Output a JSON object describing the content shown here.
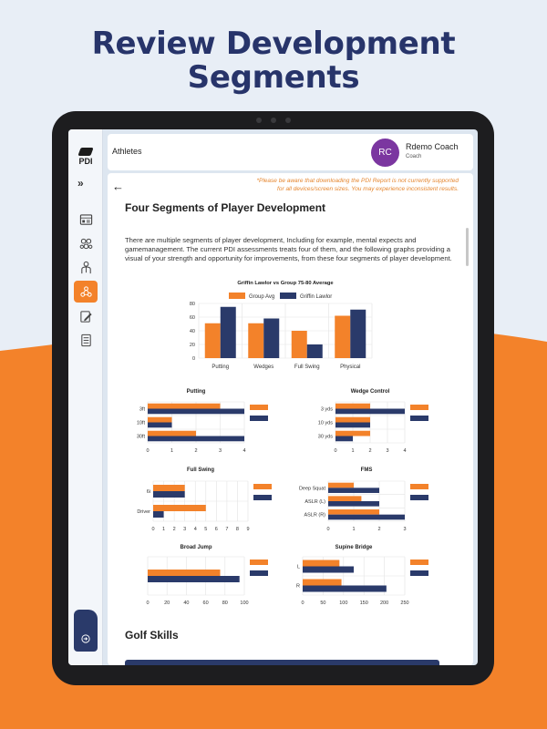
{
  "promo": {
    "title_line1": "Review Development",
    "title_line2": "Segments"
  },
  "colors": {
    "orange": "#f3822a",
    "navy": "#2a3a6a",
    "title": "#27346a",
    "avatar": "#7b36a0"
  },
  "sidebar": {
    "logo_text": "PDI",
    "expand_icon": "double-chevron-right-icon",
    "items": [
      {
        "icon": "dashboard-icon",
        "active": false
      },
      {
        "icon": "team-icon",
        "active": false
      },
      {
        "icon": "athlete-icon",
        "active": false
      },
      {
        "icon": "segments-icon",
        "active": true
      },
      {
        "icon": "edit-report-icon",
        "active": false
      },
      {
        "icon": "list-icon",
        "active": false
      }
    ],
    "logout_icon": "logout-icon"
  },
  "header": {
    "title": "Athletes",
    "avatar_initials": "RC",
    "user_name": "Rdemo Coach",
    "user_role": "Coach"
  },
  "content": {
    "notice": "*Please be aware that downloading the PDI Report is not currently supported for all devices/screen sizes. You may experience inconsistent results.",
    "heading": "Four Segments of Player Development",
    "paragraph": "There are multiple segments of player development, Including for example, mental expects and gamemanagement. The current PDI assessments treats four of them, and the following graphs providing a visual of your strength and opportunity for improvements, from these four segments of player development.",
    "section2_heading": "Golf Skills"
  },
  "chart_data": [
    {
      "type": "bar",
      "title": "Griffin Lawlor vs Group 75-80 Average",
      "categories": [
        "Putting",
        "Wedges",
        "Full Swing",
        "Physical"
      ],
      "series": [
        {
          "name": "Group Avg",
          "values": [
            51,
            51,
            40,
            62
          ]
        },
        {
          "name": "Griffin Lawlor",
          "values": [
            75,
            58,
            20,
            71
          ]
        }
      ],
      "ylim": [
        0,
        80
      ],
      "yticks": [
        0,
        20,
        40,
        60,
        80
      ]
    },
    {
      "type": "bar",
      "orientation": "horizontal",
      "title": "Putting",
      "categories": [
        "3ft",
        "10ft",
        "30ft"
      ],
      "series": [
        {
          "name": "Group Avg",
          "values": [
            3,
            1,
            2
          ]
        },
        {
          "name": "Griffin Lawlor",
          "values": [
            4,
            1,
            4
          ]
        }
      ],
      "xlim": [
        0,
        4
      ],
      "xticks": [
        0,
        1,
        2,
        3,
        4
      ]
    },
    {
      "type": "bar",
      "orientation": "horizontal",
      "title": "Wedge Control",
      "categories": [
        "3 yds",
        "10 yds",
        "30 yds"
      ],
      "series": [
        {
          "name": "Group Avg",
          "values": [
            2,
            2,
            2
          ]
        },
        {
          "name": "Griffin Lawlor",
          "values": [
            4,
            2,
            1
          ]
        }
      ],
      "xlim": [
        0,
        4
      ],
      "xticks": [
        0,
        1,
        2,
        3,
        4
      ]
    },
    {
      "type": "bar",
      "orientation": "horizontal",
      "title": "Full Swing",
      "categories": [
        "6i",
        "Driver"
      ],
      "series": [
        {
          "name": "Group Avg",
          "values": [
            3,
            5
          ]
        },
        {
          "name": "Griffin Lawlor",
          "values": [
            3,
            1
          ]
        }
      ],
      "xlim": [
        0,
        9
      ],
      "xticks": [
        0,
        1,
        2,
        3,
        4,
        5,
        6,
        7,
        8,
        9
      ]
    },
    {
      "type": "bar",
      "orientation": "horizontal",
      "title": "FMS",
      "categories": [
        "Deep Squat",
        "ASLR (L)",
        "ASLR (R)"
      ],
      "series": [
        {
          "name": "Group Avg",
          "values": [
            1,
            1.3,
            2
          ]
        },
        {
          "name": "Griffin Lawlor",
          "values": [
            2,
            2,
            3
          ]
        }
      ],
      "xlim": [
        0,
        3
      ],
      "xticks": [
        0,
        1,
        2,
        3
      ]
    },
    {
      "type": "bar",
      "orientation": "horizontal",
      "title": "Broad Jump",
      "categories": [
        ""
      ],
      "series": [
        {
          "name": "Group Avg",
          "values": [
            75
          ]
        },
        {
          "name": "Griffin Lawlor",
          "values": [
            95
          ]
        }
      ],
      "xlim": [
        0,
        100
      ],
      "xticks": [
        0,
        20,
        40,
        60,
        80,
        100
      ]
    },
    {
      "type": "bar",
      "orientation": "horizontal",
      "title": "Supine Bridge",
      "categories": [
        "L",
        "R"
      ],
      "series": [
        {
          "name": "Group Avg",
          "values": [
            90,
            95
          ]
        },
        {
          "name": "Griffin Lawlor",
          "values": [
            125,
            205
          ]
        }
      ],
      "xlim": [
        0,
        250
      ],
      "xticks": [
        0,
        50,
        100,
        150,
        200,
        250
      ]
    }
  ]
}
